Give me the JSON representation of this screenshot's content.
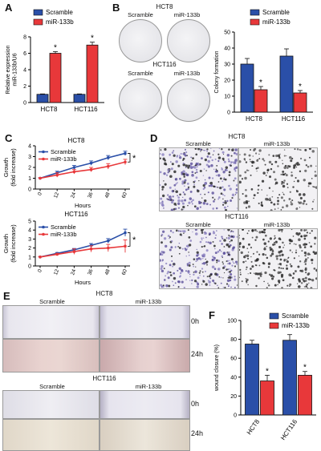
{
  "figure": {
    "colors": {
      "scramble": "#2a4fa8",
      "mir": "#e8383a",
      "cells_purple": "#5a4d9a",
      "cells_black": "#222222"
    },
    "panels": {
      "A": {
        "label": "A"
      },
      "B": {
        "label": "B",
        "hct8_title": "HCT8",
        "hct116_title": "HCT116",
        "scramble": "Scramble",
        "mir": "miR-133b"
      },
      "C": {
        "label": "C"
      },
      "D": {
        "label": "D",
        "hct8_title": "HCT8",
        "hct116_title": "HCT116",
        "scramble": "Scramble",
        "mir": "miR-133b"
      },
      "E": {
        "label": "E",
        "hct8_title": "HCT8",
        "hct116_title": "HCT116",
        "scramble": "Scramble",
        "mir": "miR-133b",
        "t0": "0h",
        "t24": "24h"
      },
      "F": {
        "label": "F"
      }
    },
    "significance": "*"
  },
  "chart_data": [
    {
      "id": "A",
      "type": "bar",
      "categories": [
        "HCT8",
        "HCT116"
      ],
      "series": [
        {
          "name": "Scramble",
          "values": [
            1.0,
            1.0
          ],
          "errors": [
            0.05,
            0.05
          ]
        },
        {
          "name": "miR-133b",
          "values": [
            6.0,
            7.0
          ],
          "errors": [
            0.2,
            0.35
          ]
        }
      ],
      "ylabel": "Relative expression\nmiR-133b/U6",
      "ylim": [
        0,
        8
      ],
      "yticks": [
        0,
        2,
        4,
        6,
        8
      ],
      "significant": [
        false,
        true
      ],
      "legend": "top-left"
    },
    {
      "id": "B",
      "type": "bar",
      "categories": [
        "HCT8",
        "HCT116"
      ],
      "series": [
        {
          "name": "Scramble",
          "values": [
            30,
            35
          ],
          "errors": [
            3.5,
            4.5
          ]
        },
        {
          "name": "miR-133b",
          "values": [
            14,
            12
          ],
          "errors": [
            2,
            1.5
          ]
        }
      ],
      "ylabel": "Colony formation",
      "ylim": [
        0,
        50
      ],
      "yticks": [
        0,
        10,
        20,
        30,
        40,
        50
      ],
      "legend": "top-right"
    },
    {
      "id": "C1",
      "type": "line",
      "title": "HCT8",
      "x": [
        0,
        12,
        24,
        36,
        48,
        60
      ],
      "series": [
        {
          "name": "Scramble",
          "values": [
            1.0,
            1.5,
            2.0,
            2.4,
            2.9,
            3.3
          ],
          "errors": [
            0.05,
            0.15,
            0.18,
            0.2,
            0.2,
            0.2
          ]
        },
        {
          "name": "miR-133b",
          "values": [
            1.0,
            1.3,
            1.6,
            1.8,
            2.1,
            2.5
          ],
          "errors": [
            0.05,
            0.2,
            0.2,
            0.2,
            0.25,
            0.25
          ]
        }
      ],
      "xlabel": "Hours",
      "ylabel": "Growth\n(fold increase)",
      "ylim": [
        0,
        4
      ],
      "yticks": [
        0,
        1,
        2,
        3,
        4
      ],
      "legend": "top-left"
    },
    {
      "id": "C2",
      "type": "line",
      "title": "HCT116",
      "x": [
        0,
        12,
        24,
        36,
        48,
        60
      ],
      "series": [
        {
          "name": "Scramble",
          "values": [
            1.0,
            1.4,
            1.8,
            2.3,
            2.8,
            3.7
          ],
          "errors": [
            0.05,
            0.1,
            0.15,
            0.2,
            0.25,
            0.4
          ]
        },
        {
          "name": "miR-133b",
          "values": [
            1.0,
            1.3,
            1.6,
            1.9,
            2.0,
            2.2
          ],
          "errors": [
            0.05,
            0.1,
            0.3,
            0.35,
            0.4,
            0.7
          ]
        }
      ],
      "xlabel": "Hours",
      "ylabel": "Growth\n(fold increase)",
      "ylim": [
        0,
        5
      ],
      "yticks": [
        0,
        1,
        2,
        3,
        4,
        5
      ],
      "legend": "top-left"
    },
    {
      "id": "F",
      "type": "bar",
      "categories": [
        "HCT8",
        "HCT116"
      ],
      "series": [
        {
          "name": "Scramble",
          "values": [
            75,
            79
          ],
          "errors": [
            4,
            6
          ]
        },
        {
          "name": "miR-133b",
          "values": [
            36,
            42
          ],
          "errors": [
            6,
            4
          ]
        }
      ],
      "ylabel": "wound closure    (%)",
      "ylim": [
        0,
        100
      ],
      "yticks": [
        0,
        20,
        40,
        60,
        80,
        100
      ],
      "legend": "top-right"
    }
  ]
}
